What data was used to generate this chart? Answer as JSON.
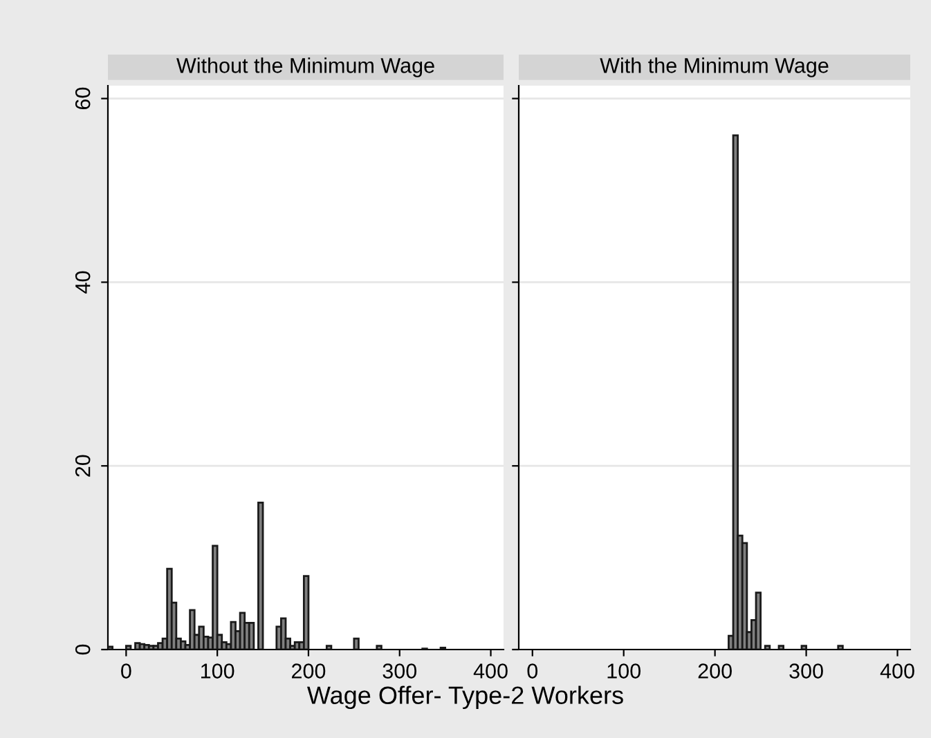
{
  "chart_data": [
    {
      "type": "histogram",
      "title": "Without the Minimum Wage",
      "xlabel": "Wage Offer- Type-2 Workers",
      "color": "#808080",
      "bins": [
        -20,
        -15,
        -10,
        -5,
        0,
        5,
        10,
        15,
        20,
        25,
        30,
        35,
        40,
        45,
        50,
        55,
        60,
        65,
        70,
        75,
        80,
        85,
        90,
        95,
        100,
        105,
        110,
        115,
        120,
        125,
        130,
        135,
        140,
        145,
        150,
        155,
        160,
        165,
        170,
        175,
        180,
        185,
        190,
        195,
        200,
        205,
        210,
        215,
        220,
        225,
        230,
        235,
        240,
        245,
        250,
        255,
        260,
        265,
        270,
        275,
        280,
        285,
        290,
        295,
        300,
        305,
        310,
        315,
        320,
        325,
        330,
        335,
        340,
        345,
        350
      ],
      "values": [
        0.3,
        0,
        0,
        0,
        0.4,
        null,
        0.7,
        0.6,
        0.5,
        0.4,
        0.4,
        0.7,
        1.2,
        8.8,
        5.1,
        1.2,
        0.9,
        0.5,
        4.3,
        1.6,
        2.5,
        1.4,
        1.3,
        11.3,
        1.6,
        0.8,
        0.6,
        3.0,
        2.0,
        4.0,
        2.9,
        2.9,
        0,
        16.0,
        0,
        0,
        0,
        2.5,
        3.4,
        1.2,
        0.4,
        0.8,
        0.8,
        8.0,
        0,
        0,
        0,
        0,
        0.4,
        0,
        0,
        0,
        0,
        0,
        1.2,
        0,
        0,
        0,
        0,
        0.4,
        0,
        0,
        0,
        0,
        0,
        0,
        0,
        0,
        0,
        0.1,
        0,
        0,
        0,
        0.2
      ],
      "xlim": [
        -20,
        414
      ],
      "xticks": [
        0,
        100,
        200,
        300,
        400
      ],
      "ylim": [
        0,
        61.4
      ],
      "yticks": [
        0,
        20,
        40,
        60
      ],
      "grid": "y"
    },
    {
      "type": "histogram",
      "title": "With the Minimum Wage",
      "color": "#808080",
      "bins": [
        215,
        220,
        225,
        230,
        235,
        240,
        245,
        250,
        255,
        260,
        265,
        270,
        275,
        280,
        285,
        290,
        295,
        300,
        305,
        310,
        315,
        320,
        325,
        330,
        335,
        340
      ],
      "values": [
        1.5,
        56.0,
        12.4,
        11.6,
        1.9,
        3.2,
        6.2,
        0,
        0.4,
        0,
        0,
        0.4,
        0,
        0,
        0,
        0,
        0.4,
        0,
        0,
        0,
        0,
        0,
        0,
        0,
        0.4
      ],
      "xlim": [
        -15,
        414
      ],
      "xticks": [
        0,
        100,
        200,
        300,
        400
      ],
      "ylim": [
        0,
        61.4
      ],
      "yticks": [
        0,
        20,
        40,
        60
      ],
      "grid": "y",
      "tick_labels": "x"
    }
  ]
}
